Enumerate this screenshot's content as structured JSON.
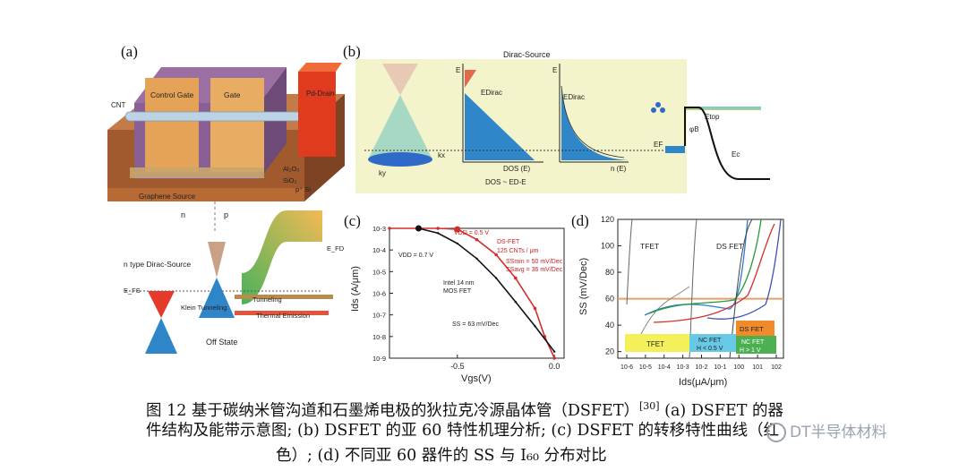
{
  "panels": {
    "a": {
      "letter": "(a)",
      "labels": {
        "cnt": "CNT",
        "control_gate": "Control Gate",
        "gate": "Gate",
        "pd_drain": "Pd-Drain",
        "al2o3": "Al₂O₃",
        "sio2": "SiO₂",
        "psi": "p⁺ Si",
        "graphene_source": "Graphene Source",
        "n": "n",
        "p": "p",
        "n_type": "n type Dirac-Source",
        "efs": "E_FS",
        "efd": "E_FD",
        "tunneling": "Tunneling",
        "klein": "Klein Tunneling",
        "thermal": "Thermal Emission",
        "off_state": "Off State"
      }
    },
    "b": {
      "letter": "(b)",
      "title": "Dirac-Source",
      "labels": {
        "kx": "kx",
        "ky": "ky",
        "e1": "E",
        "edirac1": "EDirac",
        "dos_e": "DOS (E)",
        "dos_rel": "DOS ~ ED-E",
        "e2": "E",
        "edirac2": "EDirac",
        "n_e": "n (E)",
        "ef": "EF",
        "etop": "Etop",
        "phib": "φB",
        "ec": "Ec"
      }
    },
    "c": {
      "letter": "(c)",
      "ylabel": "Ids (A/μm)",
      "xlabel": "Vgs(V)",
      "annotations": {
        "vdd07": "VDD = 0.7 V",
        "vdd05": "VDD = 0.5 V",
        "dsfet": "DS-FET",
        "cnts": "125 CNTs / μm",
        "ss50": "SSmin = 50 mV/Dec",
        "ss36": "SSavg = 36 mV/Dec",
        "intel": "Intel 14 nm",
        "mos": "MOS FET",
        "ss63": "SS = 63 mV/Dec"
      }
    },
    "d": {
      "letter": "(d)",
      "ylabel": "SS (mV/Dec)",
      "xlabel": "Ids(μA/μm)",
      "labels": {
        "tfet": "TFET",
        "dsfet": "DS FET",
        "box_tfet": "TFET",
        "box_nc1_a": "NC FET",
        "box_nc1_b": "H < 0.5 V",
        "box_ds": "DS FET",
        "box_nc2_a": "NC FET",
        "box_nc2_b": "H > 1 V"
      }
    }
  },
  "chart_data": [
    {
      "type": "line",
      "title": "",
      "xlabel": "Vgs(V)",
      "ylabel": "Ids (A/μm)",
      "xlim": [
        -0.85,
        0.05
      ],
      "ylim": [
        1e-09,
        0.001
      ],
      "yscale": "log",
      "x_ticks": [
        "-0.5",
        "0.0"
      ],
      "y_ticks": [
        "10-9",
        "10-8",
        "10-7",
        "10-6",
        "10-5",
        "10-4",
        "10-3"
      ],
      "series": [
        {
          "name": "DS-FET",
          "x": [
            -0.85,
            -0.6,
            -0.5,
            -0.4,
            -0.3,
            -0.2,
            -0.1,
            -0.05,
            0.0
          ],
          "y": [
            0.001,
            0.001,
            0.0009,
            0.0003,
            6e-05,
            5e-06,
            2e-07,
            1e-08,
            1e-09
          ]
        },
        {
          "name": "Intel 14 nm MOS FET",
          "x": [
            -0.7,
            -0.6,
            -0.5,
            -0.4,
            -0.3,
            -0.2,
            -0.1,
            0.0
          ],
          "y": [
            0.001,
            0.0006,
            0.0002,
            4e-05,
            5e-06,
            4e-07,
            3e-08,
            2e-09
          ]
        }
      ]
    },
    {
      "type": "scatter",
      "title": "",
      "xlabel": "Ids(μA/μm)",
      "ylabel": "SS (mV/Dec)",
      "xlim": [
        1e-06,
        100
      ],
      "ylim": [
        15,
        120
      ],
      "x_ticks": [
        "10-6",
        "10-5",
        "10-4",
        "10-3",
        "10-2",
        "10-1",
        "100",
        "101",
        "102"
      ],
      "y_ticks": [
        "20",
        "40",
        "60",
        "80",
        "100",
        "120"
      ],
      "reference_line": 60
    }
  ],
  "caption": {
    "line1": "图 12 基于碳纳米管沟道和石墨烯电极的狄拉克冷源晶体管（DSFET）",
    "ref": "[30]",
    "line1b": " (a) DSFET 的器",
    "line2": "件结构及能带示意图; (b) DSFET 的亚 60 特性机理分析; (c) DSFET 的转移特性曲线（红",
    "line3": "色）; (d) 不同亚 60 器件的 SS 与 I₆₀ 分布对比"
  },
  "watermark": "DT半导体材料",
  "colors": {
    "red": "#d92b2b",
    "blue": "#2f86c9",
    "gold": "#f2b64c",
    "panel_b_bg": "#f3f3cc"
  }
}
